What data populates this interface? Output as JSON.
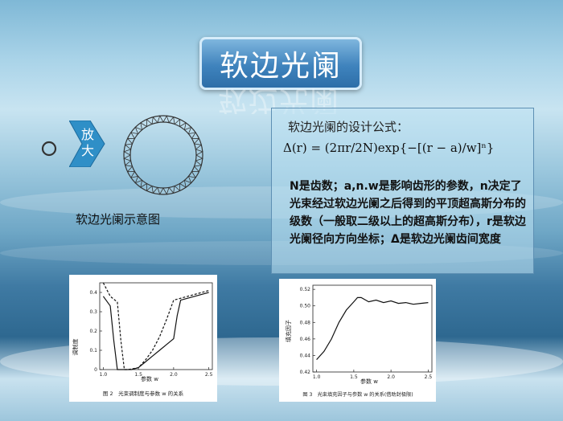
{
  "title": "软边光阑",
  "formula_title": "软边光阑的设计公式：",
  "formula": "Δ(r) = (2πr/2N)exp{−[(r − a)/w]ⁿ}",
  "description": "N是齿数；a,n.w是影响齿形的参数，n决定了光束经过软边光阑之后得到的平顶超高斯分布的级数（一般取二级以上的超高斯分布），r是软边光阑径向方向坐标；Δ是软边光阑齿间宽度",
  "chevron_label": "放大",
  "diagram_label": "软边光阑示意图",
  "plot1": {
    "ylabel": "调制度",
    "xlabel": "参数 w",
    "caption": "图 2　光束调制度与参数 w 的关系",
    "x_ticks": [
      "1.0",
      "1.5",
      "2.0",
      "2.5"
    ],
    "y_ticks": [
      "0",
      "0.1",
      "0.2",
      "0.3",
      "0.4"
    ]
  },
  "plot2": {
    "ylabel": "填充因子",
    "xlabel": "参数 w",
    "caption": "图 3　光束填充因子与参数 w 的关系(借助封极限)",
    "x_ticks": [
      "1.0",
      "1.5",
      "2.0",
      "2.5"
    ],
    "y_ticks": [
      "0.42",
      "0.44",
      "0.46",
      "0.48",
      "0.50",
      "0.52"
    ]
  },
  "chart_data": [
    {
      "type": "line",
      "xlabel": "参数 w",
      "ylabel": "调制度",
      "xlim": [
        0.95,
        2.55
      ],
      "ylim": [
        0,
        0.45
      ],
      "series": [
        {
          "style": "solid",
          "x": [
            1.0,
            1.1,
            1.15,
            1.2,
            1.25,
            1.3,
            1.4,
            1.5,
            1.6,
            1.7,
            1.8,
            1.9,
            2.0,
            2.05,
            2.1,
            2.3,
            2.5
          ],
          "y": [
            0.38,
            0.33,
            0.15,
            0.0,
            0.0,
            0.0,
            0.0,
            0.01,
            0.04,
            0.07,
            0.1,
            0.13,
            0.16,
            0.28,
            0.36,
            0.38,
            0.4
          ]
        },
        {
          "style": "dashed",
          "x": [
            1.0,
            1.1,
            1.2,
            1.25,
            1.3,
            1.35,
            1.5,
            1.6,
            1.7,
            1.8,
            1.9,
            2.0,
            2.2,
            2.5
          ],
          "y": [
            0.45,
            0.38,
            0.35,
            0.15,
            0.0,
            0.0,
            0.01,
            0.05,
            0.1,
            0.17,
            0.26,
            0.36,
            0.38,
            0.41
          ]
        }
      ]
    },
    {
      "type": "line",
      "xlabel": "参数 w",
      "ylabel": "填充因子",
      "xlim": [
        0.95,
        2.55
      ],
      "ylim": [
        0.42,
        0.525
      ],
      "series": [
        {
          "style": "solid",
          "x": [
            1.0,
            1.1,
            1.2,
            1.3,
            1.4,
            1.5,
            1.55,
            1.6,
            1.7,
            1.8,
            1.9,
            2.0,
            2.1,
            2.2,
            2.3,
            2.4,
            2.5
          ],
          "y": [
            0.435,
            0.445,
            0.46,
            0.48,
            0.495,
            0.505,
            0.51,
            0.51,
            0.505,
            0.507,
            0.504,
            0.506,
            0.503,
            0.504,
            0.502,
            0.503,
            0.504
          ]
        }
      ]
    }
  ]
}
